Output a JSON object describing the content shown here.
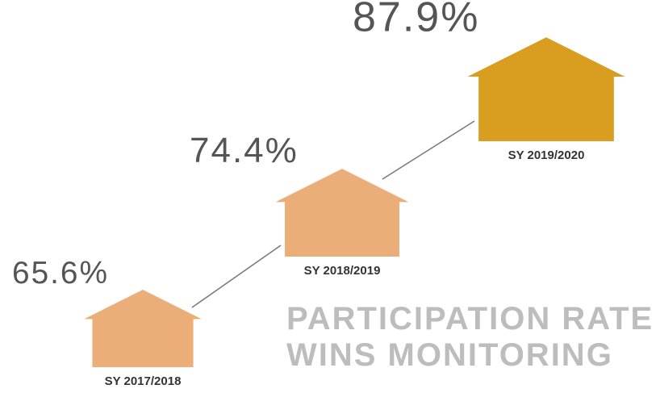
{
  "chart_data": {
    "type": "pictograph",
    "title_lines": [
      "PARTICIPATION RATE",
      "WINS MONITORING"
    ],
    "categories": [
      "SY 2017/2018",
      "SY 2018/2019",
      "SY 2019/2020"
    ],
    "values": [
      65.6,
      74.4,
      87.9
    ],
    "value_labels": [
      "65.6%",
      "74.4%",
      "87.9%"
    ],
    "colors": [
      "#ebae78",
      "#ebae78",
      "#d99e1f"
    ]
  }
}
